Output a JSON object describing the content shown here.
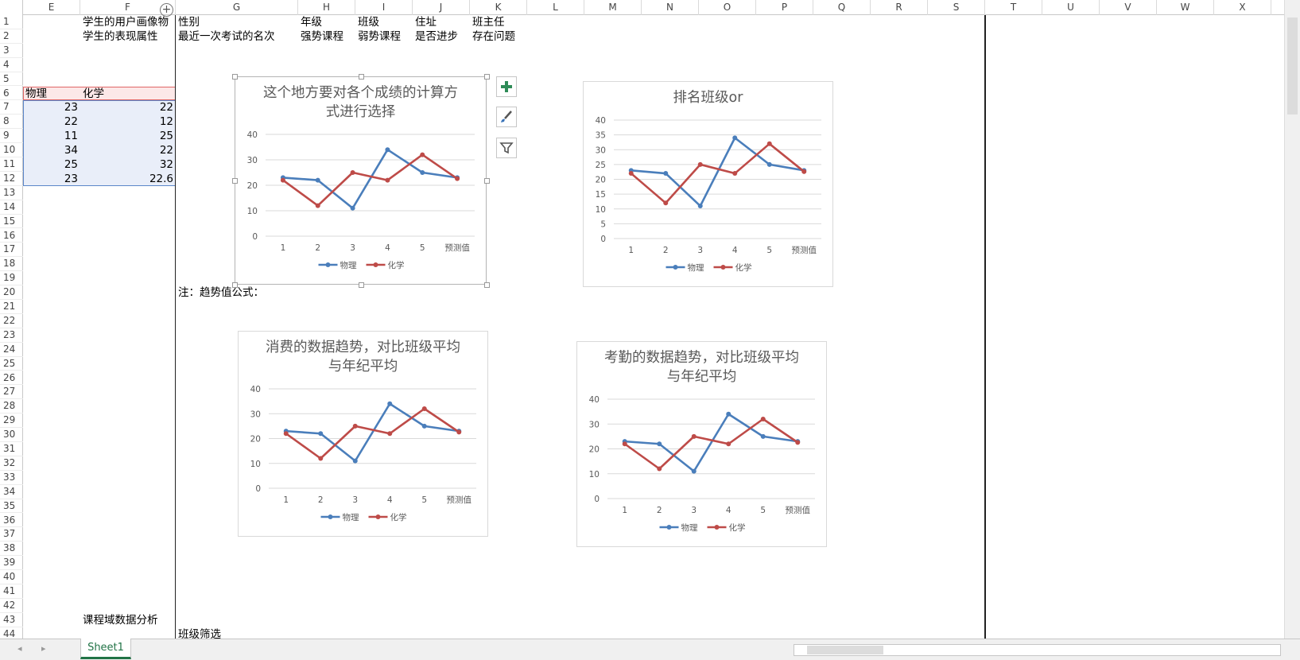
{
  "columns": [
    "E",
    "F",
    "G",
    "H",
    "I",
    "J",
    "K",
    "L",
    "M",
    "N",
    "O",
    "P",
    "Q",
    "R",
    "S",
    "T",
    "U",
    "V",
    "W",
    "X"
  ],
  "row_numbers": [
    1,
    2,
    3,
    4,
    5,
    6,
    7,
    8,
    9,
    10,
    11,
    12,
    13,
    14,
    15,
    16,
    17,
    18,
    19,
    20,
    21,
    22,
    23,
    24,
    25,
    26,
    27,
    28,
    29,
    30,
    31,
    32,
    33,
    34,
    35,
    36,
    37,
    38,
    39,
    40,
    41,
    42,
    43,
    44
  ],
  "cells": {
    "F1": "学生的用户画像物",
    "G1": "性别",
    "H1": "年级",
    "I1": "班级",
    "J1": "住址",
    "K1": "班主任",
    "F2": "学生的表现属性",
    "G2": "最近一次考试的名次",
    "H2": "强势课程",
    "I2": "弱势课程",
    "J2": "是否进步",
    "K2": "存在问题",
    "E6": "物理",
    "F6": "化学",
    "E7": 23,
    "F7": 22,
    "E8": 22,
    "F8": 12,
    "E9": 11,
    "F9": 25,
    "E10": 34,
    "F10": 22,
    "E11": 25,
    "F11": 32,
    "E12": 23,
    "F12": 22.6,
    "G20": "注：趋势值公式：",
    "F43": "课程域数据分析",
    "G44": "班级筛选"
  },
  "sheet_tab": "Sheet1",
  "chart_data": [
    {
      "type": "line",
      "title": "这个地方要对各个成绩的计算方式进行选择",
      "categories": [
        "1",
        "2",
        "3",
        "4",
        "5",
        "预测值"
      ],
      "series": [
        {
          "name": "物理",
          "color": "#4a7ebb",
          "values": [
            23,
            22,
            11,
            34,
            25,
            23
          ]
        },
        {
          "name": "化学",
          "color": "#be4b48",
          "values": [
            22,
            12,
            25,
            22,
            32,
            22.6
          ]
        }
      ],
      "ylim": [
        0,
        40
      ],
      "yticks": [
        0,
        10,
        20,
        30,
        40
      ],
      "grid": true,
      "legend": "bottom"
    },
    {
      "type": "line",
      "title": "排名班级or",
      "categories": [
        "1",
        "2",
        "3",
        "4",
        "5",
        "预测值"
      ],
      "series": [
        {
          "name": "物理",
          "color": "#4a7ebb",
          "values": [
            23,
            22,
            11,
            34,
            25,
            23
          ]
        },
        {
          "name": "化学",
          "color": "#be4b48",
          "values": [
            22,
            12,
            25,
            22,
            32,
            22.6
          ]
        }
      ],
      "ylim": [
        0,
        40
      ],
      "yticks": [
        0,
        5,
        10,
        15,
        20,
        25,
        30,
        35,
        40
      ],
      "grid": true,
      "legend": "bottom"
    },
    {
      "type": "line",
      "title": "消费的数据趋势，对比班级平均与年纪平均",
      "categories": [
        "1",
        "2",
        "3",
        "4",
        "5",
        "预测值"
      ],
      "series": [
        {
          "name": "物理",
          "color": "#4a7ebb",
          "values": [
            23,
            22,
            11,
            34,
            25,
            23
          ]
        },
        {
          "name": "化学",
          "color": "#be4b48",
          "values": [
            22,
            12,
            25,
            22,
            32,
            22.6
          ]
        }
      ],
      "ylim": [
        0,
        40
      ],
      "yticks": [
        0,
        10,
        20,
        30,
        40
      ],
      "grid": true,
      "legend": "bottom"
    },
    {
      "type": "line",
      "title": "考勤的数据趋势，对比班级平均与年纪平均",
      "categories": [
        "1",
        "2",
        "3",
        "4",
        "5",
        "预测值"
      ],
      "series": [
        {
          "name": "物理",
          "color": "#4a7ebb",
          "values": [
            23,
            22,
            11,
            34,
            25,
            23
          ]
        },
        {
          "name": "化学",
          "color": "#be4b48",
          "values": [
            22,
            12,
            25,
            22,
            32,
            22.6
          ]
        }
      ],
      "ylim": [
        0,
        40
      ],
      "yticks": [
        0,
        10,
        20,
        30,
        40
      ],
      "grid": true,
      "legend": "bottom"
    }
  ]
}
